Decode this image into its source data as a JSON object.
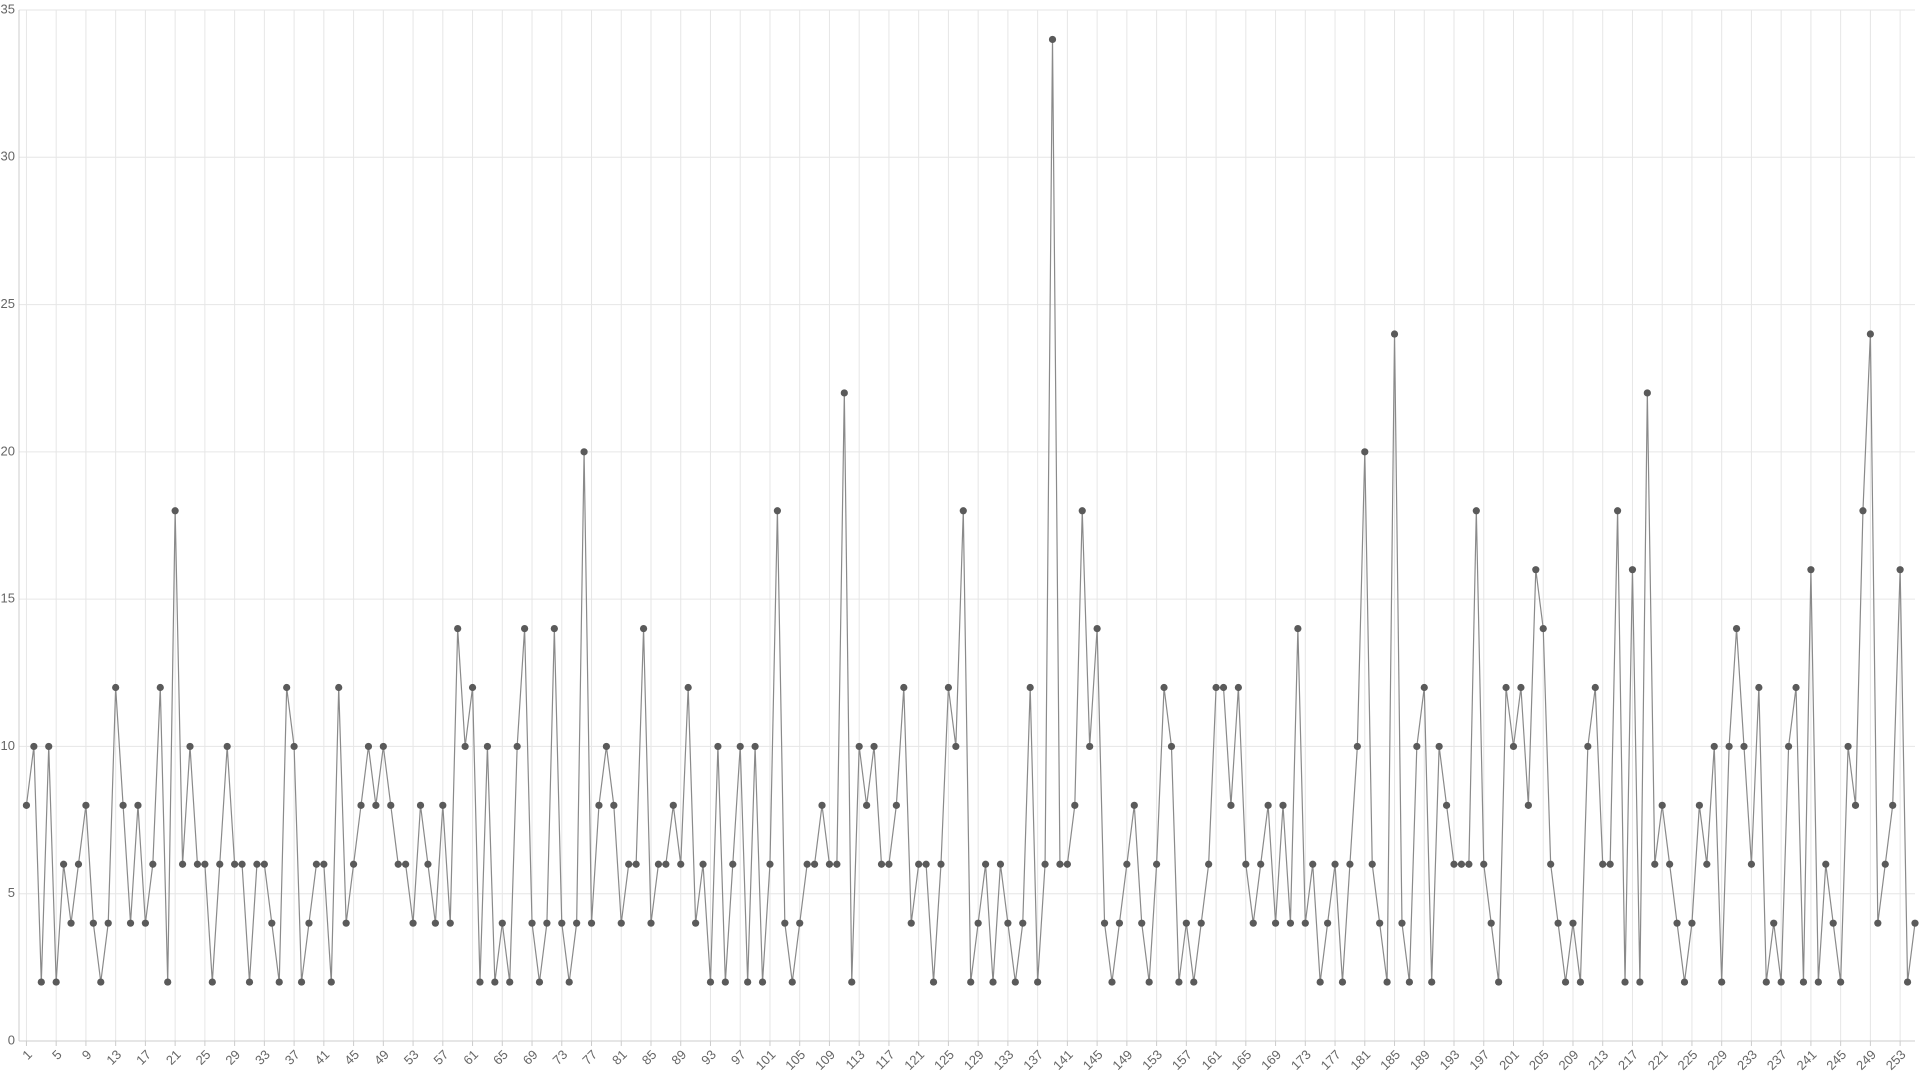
{
  "chart_data": {
    "type": "line",
    "x": [
      1,
      2,
      3,
      4,
      5,
      6,
      7,
      8,
      9,
      10,
      11,
      12,
      13,
      14,
      15,
      16,
      17,
      18,
      19,
      20,
      21,
      22,
      23,
      24,
      25,
      26,
      27,
      28,
      29,
      30,
      31,
      32,
      33,
      34,
      35,
      36,
      37,
      38,
      39,
      40,
      41,
      42,
      43,
      44,
      45,
      46,
      47,
      48,
      49,
      50,
      51,
      52,
      53,
      54,
      55,
      56,
      57,
      58,
      59,
      60,
      61,
      62,
      63,
      64,
      65,
      66,
      67,
      68,
      69,
      70,
      71,
      72,
      73,
      74,
      75,
      76,
      77,
      78,
      79,
      80,
      81,
      82,
      83,
      84,
      85,
      86,
      87,
      88,
      89,
      90,
      91,
      92,
      93,
      94,
      95,
      96,
      97,
      98,
      99,
      100,
      101,
      102,
      103,
      104,
      105,
      106,
      107,
      108,
      109,
      110,
      111,
      112,
      113,
      114,
      115,
      116,
      117,
      118,
      119,
      120,
      121,
      122,
      123,
      124,
      125,
      126,
      127,
      128,
      129,
      130,
      131,
      132,
      133,
      134,
      135,
      136,
      137,
      138,
      139,
      140,
      141,
      142,
      143,
      144,
      145,
      146,
      147,
      148,
      149,
      150,
      151,
      152,
      153,
      154,
      155,
      156,
      157,
      158,
      159,
      160,
      161,
      162,
      163,
      164,
      165,
      166,
      167,
      168,
      169,
      170,
      171,
      172,
      173,
      174,
      175,
      176,
      177,
      178,
      179,
      180,
      181,
      182,
      183,
      184,
      185,
      186,
      187,
      188,
      189,
      190,
      191,
      192,
      193,
      194,
      195,
      196,
      197,
      198,
      199,
      200,
      201,
      202,
      203,
      204,
      205,
      206,
      207,
      208,
      209,
      210,
      211,
      212,
      213,
      214,
      215,
      216,
      217,
      218,
      219,
      220,
      221,
      222,
      223,
      224,
      225,
      226,
      227,
      228,
      229,
      230,
      231,
      232,
      233,
      234,
      235,
      236,
      237,
      238,
      239,
      240,
      241,
      242,
      243,
      244,
      245,
      246,
      247,
      248,
      249,
      250,
      251,
      252,
      253,
      254,
      255
    ],
    "values": [
      8,
      10,
      2,
      10,
      2,
      6,
      4,
      6,
      8,
      4,
      2,
      4,
      12,
      8,
      4,
      8,
      4,
      6,
      12,
      2,
      18,
      6,
      10,
      6,
      6,
      2,
      6,
      10,
      6,
      6,
      2,
      6,
      6,
      4,
      2,
      12,
      10,
      2,
      4,
      6,
      6,
      2,
      12,
      4,
      6,
      8,
      10,
      8,
      10,
      8,
      6,
      6,
      4,
      8,
      6,
      4,
      8,
      4,
      14,
      10,
      12,
      2,
      10,
      2,
      4,
      2,
      10,
      14,
      4,
      2,
      4,
      14,
      4,
      2,
      4,
      20,
      4,
      8,
      10,
      8,
      4,
      6,
      6,
      14,
      4,
      6,
      6,
      8,
      6,
      12,
      4,
      6,
      2,
      10,
      2,
      6,
      10,
      2,
      10,
      2,
      6,
      18,
      4,
      2,
      4,
      6,
      6,
      8,
      6,
      6,
      22,
      2,
      10,
      8,
      10,
      6,
      6,
      8,
      12,
      4,
      6,
      6,
      2,
      6,
      12,
      10,
      18,
      2,
      4,
      6,
      2,
      6,
      4,
      2,
      4,
      12,
      2,
      6,
      34,
      6,
      6,
      8,
      18,
      10,
      14,
      4,
      2,
      4,
      6,
      8,
      4,
      2,
      6,
      12,
      10,
      2,
      4,
      2,
      4,
      6,
      12,
      12,
      8,
      12,
      6,
      4,
      6,
      8,
      4,
      8,
      4,
      14,
      4,
      6,
      2,
      4,
      6,
      2,
      6,
      10,
      20,
      6,
      4,
      2,
      24,
      4,
      2,
      10,
      12,
      2,
      10,
      8,
      6,
      6,
      6,
      18,
      6,
      4,
      2,
      12,
      10,
      12,
      8,
      16,
      14,
      6,
      4,
      2,
      4,
      2,
      10,
      12,
      6,
      6,
      18,
      2,
      16,
      2,
      22,
      6,
      8,
      6,
      4,
      2,
      4,
      8,
      6,
      10,
      2,
      10,
      14,
      10,
      6,
      12,
      2,
      4,
      2,
      10,
      12,
      2,
      16,
      2,
      6,
      4,
      2,
      10,
      8,
      18,
      24,
      4,
      6,
      8,
      16,
      2,
      4
    ],
    "color": "#8a8a8a",
    "point_color": "#5a5a5a",
    "xlim": [
      0,
      255
    ],
    "xticks": [
      1,
      5,
      9,
      13,
      17,
      21,
      25,
      29,
      33,
      37,
      41,
      45,
      49,
      53,
      57,
      61,
      65,
      69,
      73,
      77,
      81,
      85,
      89,
      93,
      97,
      101,
      105,
      109,
      113,
      117,
      121,
      125,
      129,
      133,
      137,
      141,
      145,
      149,
      153,
      157,
      161,
      165,
      169,
      173,
      177,
      181,
      185,
      189,
      193,
      197,
      201,
      205,
      209,
      213,
      217,
      221,
      225,
      229,
      233,
      237,
      241,
      245,
      249,
      253
    ],
    "ylim": [
      0,
      35
    ],
    "yticks": [
      0,
      5,
      10,
      15,
      20,
      25,
      30,
      35
    ],
    "grid": true
  }
}
